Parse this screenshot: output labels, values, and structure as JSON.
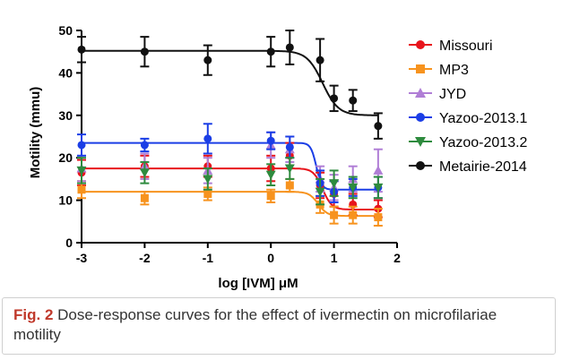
{
  "figure": {
    "caption_label": "Fig. 2",
    "caption_text": " Dose-response curves for the effect of ivermectin on microfilariae motility"
  },
  "chart_data": {
    "type": "line",
    "title": "",
    "xlabel": "log [IVM] μM",
    "ylabel": "Motility (mmu)",
    "xlim": [
      -3,
      2
    ],
    "ylim": [
      0,
      50
    ],
    "x_ticks": [
      -3,
      -2,
      -1,
      0,
      1,
      2
    ],
    "y_ticks": [
      0,
      10,
      20,
      30,
      40,
      50
    ],
    "grid": false,
    "legend_position": "right",
    "series": [
      {
        "name": "Missouri",
        "color": "#e8141c",
        "marker": "circle",
        "x": [
          -3,
          -2,
          -1,
          0,
          0.3,
          0.78,
          1,
          1.3,
          1.7
        ],
        "y": [
          16.5,
          18,
          18,
          17.5,
          20.5,
          13.5,
          11.5,
          9,
          8
        ],
        "err": [
          3,
          2.5,
          2.5,
          3,
          3,
          3,
          3,
          2.5,
          2
        ],
        "fit": {
          "top": 17.5,
          "bottom": 7.8,
          "logEC50": 0.82,
          "hill": -6
        }
      },
      {
        "name": "MP3",
        "color": "#f7931e",
        "marker": "square",
        "x": [
          -3,
          -2,
          -1,
          0,
          0.3,
          0.78,
          1,
          1.3,
          1.7
        ],
        "y": [
          12.5,
          10.5,
          11.5,
          11,
          13.5,
          9,
          6.5,
          6.5,
          6
        ],
        "err": [
          2,
          1.5,
          1.5,
          1.5,
          1.5,
          2,
          2,
          2,
          2
        ],
        "fit": {
          "top": 12,
          "bottom": 6.3,
          "logEC50": 0.75,
          "hill": -6
        }
      },
      {
        "name": "JYD",
        "color": "#b07ed6",
        "marker": "triangle-up",
        "x": [
          -3,
          -2,
          -1,
          0,
          0.3,
          0.78,
          1,
          1.3,
          1.7
        ],
        "y": [
          17.5,
          18,
          17,
          23,
          22,
          15,
          13,
          15,
          17
        ],
        "err": [
          3,
          3,
          3,
          3,
          3,
          3,
          3,
          3,
          5
        ],
        "fit": null
      },
      {
        "name": "Yazoo-2013.1",
        "color": "#1b3ee6",
        "marker": "circle",
        "x": [
          -3,
          -2,
          -1,
          0,
          0.3,
          0.78,
          1,
          1.3,
          1.7
        ],
        "y": [
          23,
          23,
          24.5,
          24,
          22.5,
          14,
          12,
          13,
          13
        ],
        "err": [
          2.5,
          1.5,
          3.5,
          2,
          2.5,
          3,
          2.5,
          2,
          2.5
        ],
        "fit": {
          "top": 23.5,
          "bottom": 12.5,
          "logEC50": 0.72,
          "hill": -10
        }
      },
      {
        "name": "Yazoo-2013.2",
        "color": "#2e8b3e",
        "marker": "triangle-down",
        "x": [
          -3,
          -2,
          -1,
          0,
          0.3,
          0.78,
          1,
          1.3,
          1.7
        ],
        "y": [
          17,
          16.5,
          15,
          16,
          17.5,
          12,
          14,
          13,
          13
        ],
        "err": [
          3,
          2.5,
          2.5,
          2.5,
          2.5,
          3,
          3,
          2.5,
          2.5
        ],
        "fit": null
      },
      {
        "name": "Metairie-2014",
        "color": "#111111",
        "marker": "circle",
        "x": [
          -3,
          -2,
          -1,
          0,
          0.3,
          0.78,
          1,
          1.3,
          1.7
        ],
        "y": [
          45.5,
          45,
          43,
          45,
          46,
          43,
          34,
          33.5,
          27.5
        ],
        "err": [
          3,
          3.5,
          3.5,
          3.5,
          4,
          5,
          3,
          2.5,
          3
        ],
        "fit": {
          "top": 45.2,
          "bottom": 30,
          "logEC50": 0.82,
          "hill": -3.5
        }
      }
    ]
  }
}
